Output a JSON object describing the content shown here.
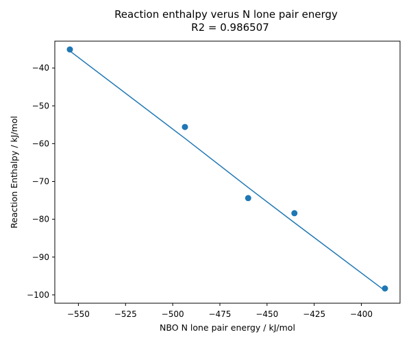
{
  "chart_data": {
    "type": "scatter",
    "title": "Reaction enthalpy verus N lone pair energy",
    "subtitle": "R2 = 0.986507",
    "xlabel": "NBO N lone pair energy / kJ/mol",
    "ylabel": "Reaction Enthalpy / kJ/mol",
    "xlim": [
      -562.5,
      -379.5
    ],
    "ylim": [
      -102.2,
      -32.9
    ],
    "xticks": [
      -550,
      -525,
      -500,
      -475,
      -450,
      -425,
      -400
    ],
    "yticks": [
      -40,
      -50,
      -60,
      -70,
      -80,
      -90,
      -100
    ],
    "xtick_labels": [
      "−550",
      "−525",
      "−500",
      "−475",
      "−450",
      "−425",
      "−400"
    ],
    "ytick_labels": [
      "−40",
      "−50",
      "−60",
      "−70",
      "−80",
      "−90",
      "−100"
    ],
    "grid": false,
    "legend": "none",
    "series": [
      {
        "type": "scatter",
        "x": [
          -554.5,
          -493.5,
          -460.0,
          -435.5,
          -387.5
        ],
        "y": [
          -35.1,
          -55.6,
          -74.4,
          -78.4,
          -98.3
        ],
        "color": "#1f77b4"
      },
      {
        "type": "line",
        "x": [
          -554.5,
          -493.5,
          -460.0,
          -435.5,
          -387.5
        ],
        "y": [
          -35.5,
          -58.6,
          -71.6,
          -80.9,
          -98.9
        ],
        "color": "#1f77b4"
      }
    ]
  }
}
